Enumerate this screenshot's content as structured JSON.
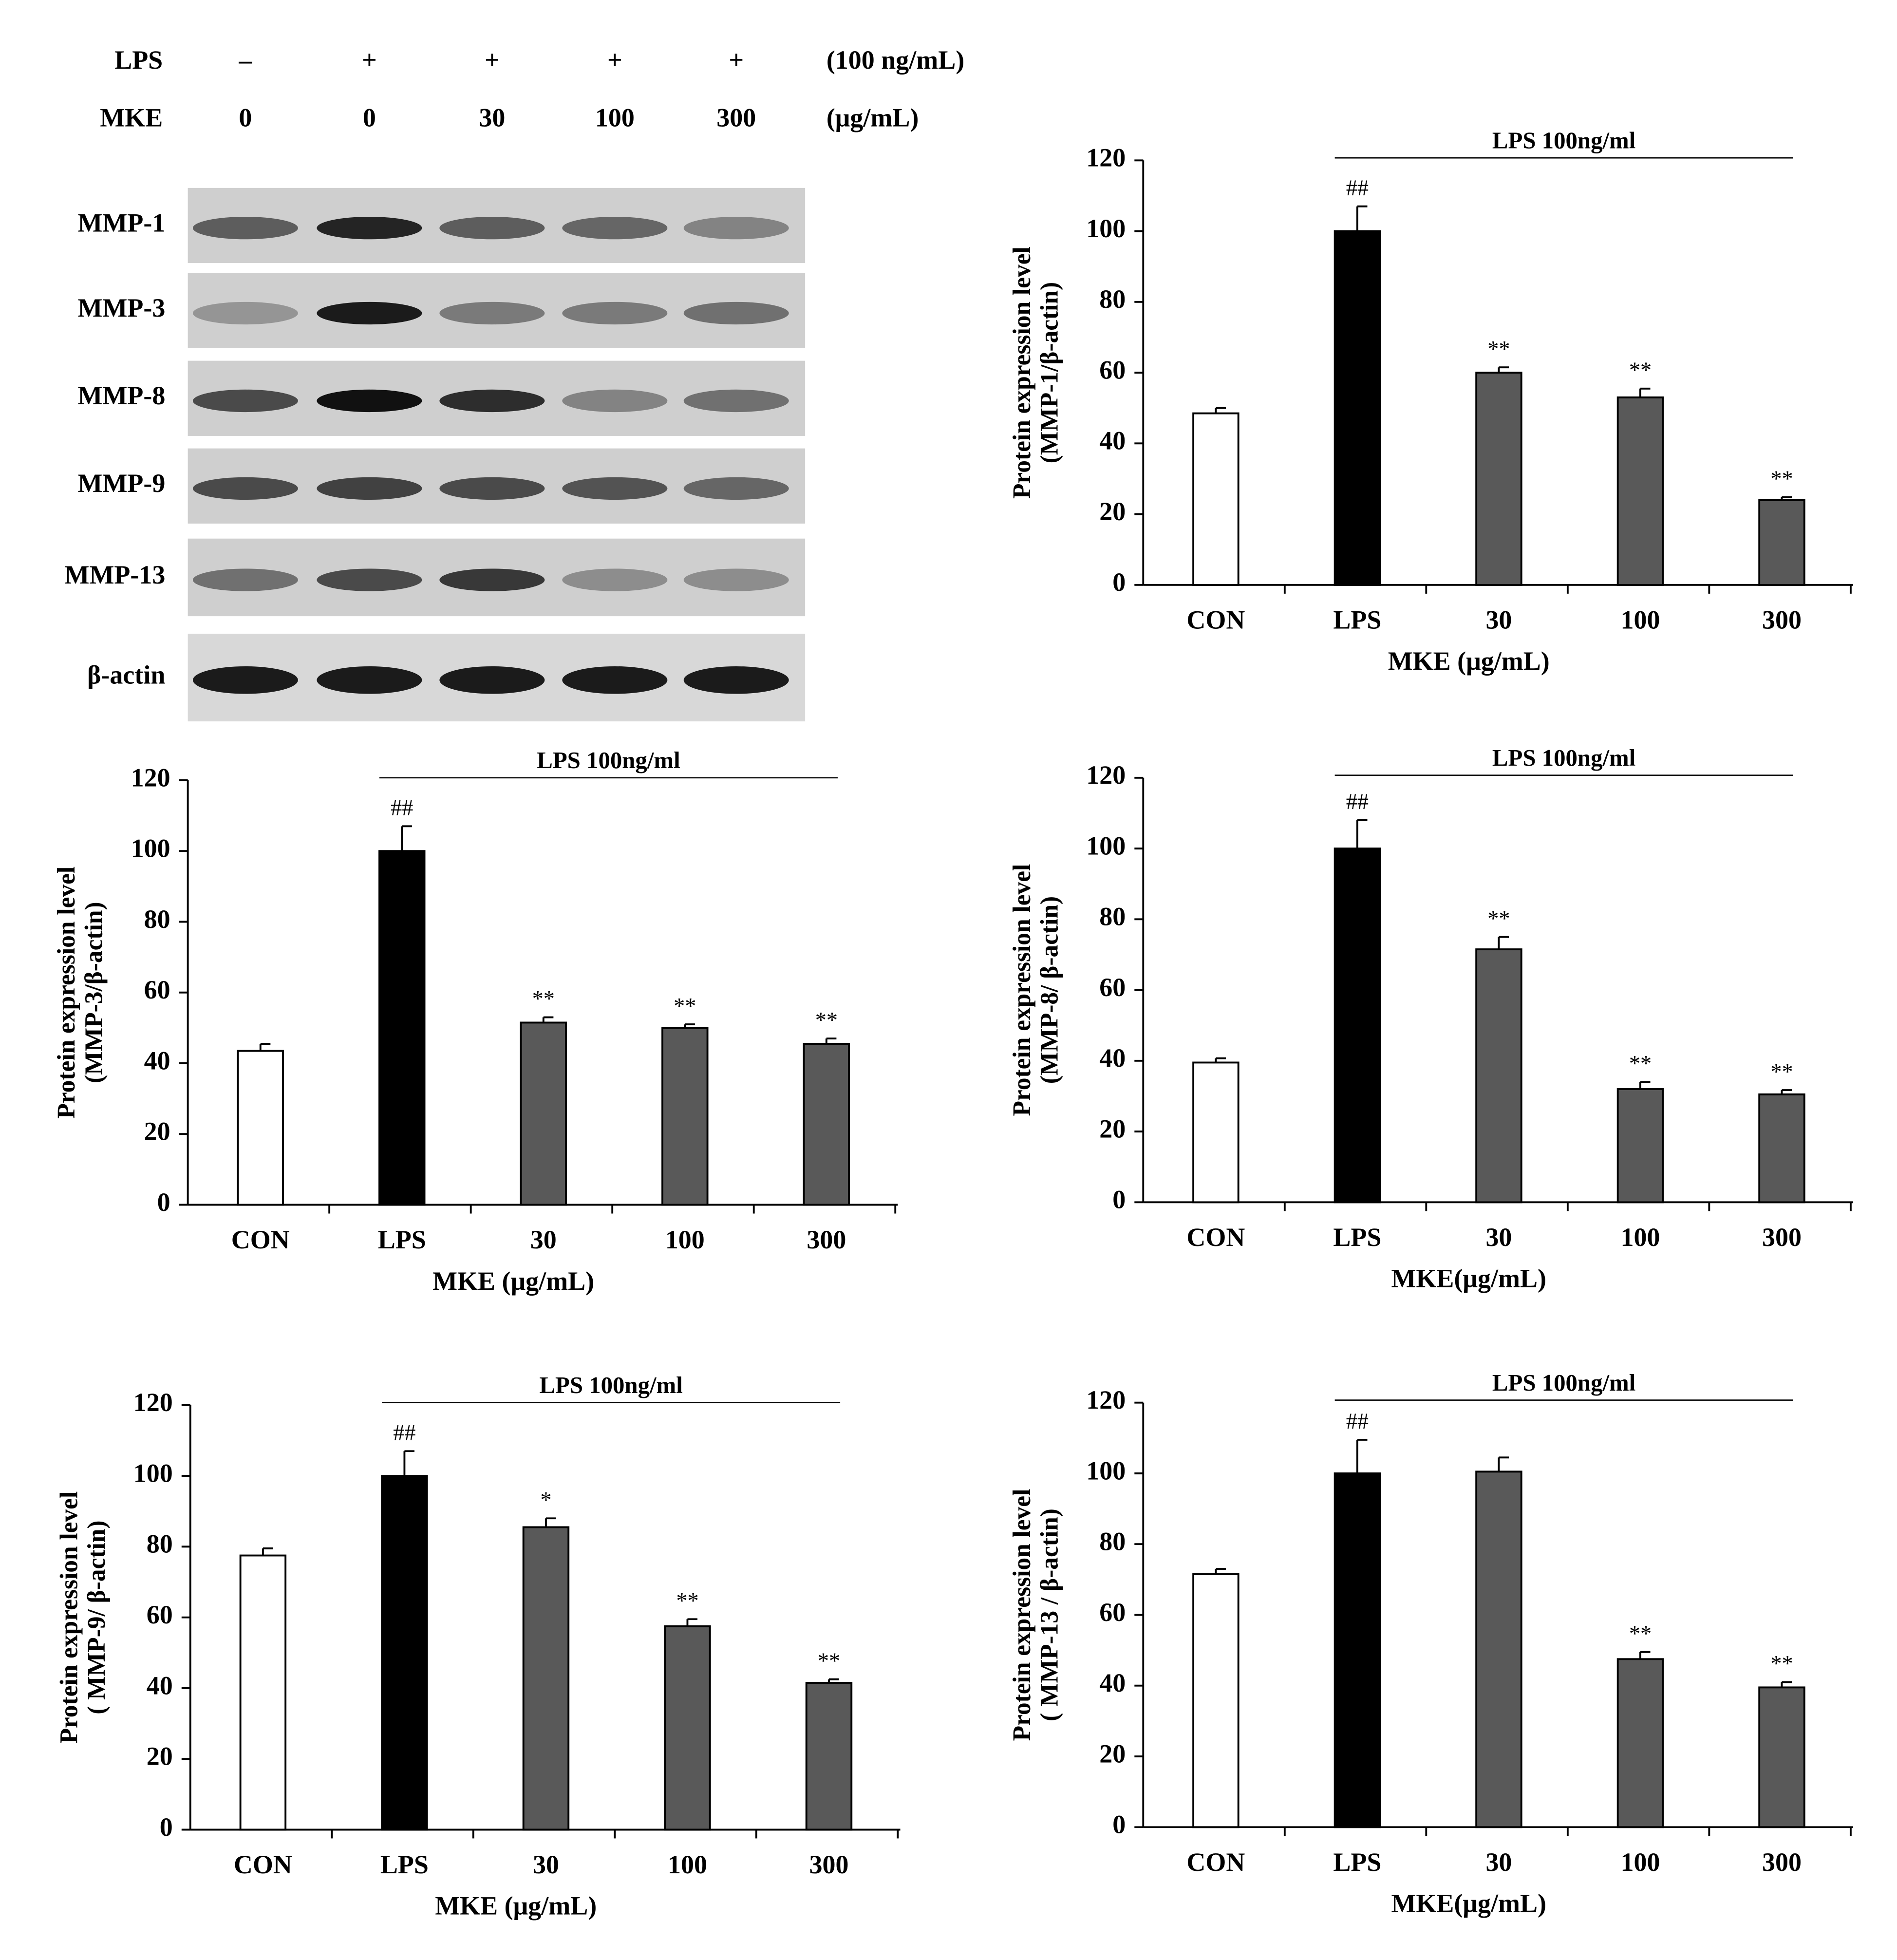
{
  "blot": {
    "treatments": [
      {
        "label": "LPS",
        "lanes": [
          "–",
          "+",
          "+",
          "+",
          "+"
        ],
        "unit": "(100 ng/mL)"
      },
      {
        "label": "MKE",
        "lanes": [
          "0",
          "0",
          "30",
          "100",
          "300"
        ],
        "unit": "(μg/mL)"
      }
    ],
    "rows": [
      "MMP-1",
      "MMP-3",
      "MMP-8",
      "MMP-9",
      "MMP-13",
      "β-actin"
    ]
  },
  "chart_data": [
    {
      "type": "bar",
      "categories": [
        "CON",
        "LPS",
        "30",
        "100",
        "300"
      ],
      "values": [
        48.5,
        100,
        60,
        53,
        24
      ],
      "errors": [
        1.5,
        7,
        1.5,
        2.5,
        0.8
      ],
      "colors": [
        "#ffffff",
        "#000000",
        "#595959",
        "#595959",
        "#595959"
      ],
      "sig_labels": [
        null,
        "##",
        "**",
        "**",
        "**"
      ],
      "annotation": "LPS 100ng/ml",
      "ylabel": [
        "Protein expression level",
        "(MMP-1/β-actin)"
      ],
      "xlabel": "MKE (μg/mL)",
      "ylim": [
        0,
        120
      ],
      "yticks": [
        0,
        20,
        40,
        60,
        80,
        100,
        120
      ]
    },
    {
      "type": "bar",
      "categories": [
        "CON",
        "LPS",
        "30",
        "100",
        "300"
      ],
      "values": [
        43.5,
        100,
        51.5,
        50,
        45.5
      ],
      "errors": [
        2,
        7,
        1.5,
        1,
        1.5
      ],
      "colors": [
        "#ffffff",
        "#000000",
        "#595959",
        "#595959",
        "#595959"
      ],
      "sig_labels": [
        null,
        "##",
        "**",
        "**",
        "**"
      ],
      "annotation": "LPS 100ng/ml",
      "ylabel": [
        "Protein expression level",
        "(MMP-3/β-actin)"
      ],
      "xlabel": "MKE (μg/mL)",
      "ylim": [
        0,
        120
      ],
      "yticks": [
        0,
        20,
        40,
        60,
        80,
        100,
        120
      ]
    },
    {
      "type": "bar",
      "categories": [
        "CON",
        "LPS",
        "30",
        "100",
        "300"
      ],
      "values": [
        39.5,
        100,
        71.5,
        32,
        30.5
      ],
      "errors": [
        1.2,
        8,
        3.5,
        2,
        1.2
      ],
      "colors": [
        "#ffffff",
        "#000000",
        "#595959",
        "#595959",
        "#595959"
      ],
      "sig_labels": [
        null,
        "##",
        "**",
        "**",
        "**"
      ],
      "annotation": "LPS 100ng/ml",
      "ylabel": [
        "Protein expression level",
        "(MMP-8/ β-actin)"
      ],
      "xlabel": "MKE(μg/mL)",
      "ylim": [
        0,
        120
      ],
      "yticks": [
        0,
        20,
        40,
        60,
        80,
        100,
        120
      ]
    },
    {
      "type": "bar",
      "categories": [
        "CON",
        "LPS",
        "30",
        "100",
        "300"
      ],
      "values": [
        77.5,
        100,
        85.5,
        57.5,
        41.5
      ],
      "errors": [
        2,
        7,
        2.5,
        2,
        1
      ],
      "colors": [
        "#ffffff",
        "#000000",
        "#595959",
        "#595959",
        "#595959"
      ],
      "sig_labels": [
        null,
        "##",
        "*",
        "**",
        "**"
      ],
      "annotation": "LPS 100ng/ml",
      "ylabel": [
        "Protein expression level",
        "( MMP-9/ β-actin)"
      ],
      "xlabel": "MKE (μg/mL)",
      "ylim": [
        0,
        120
      ],
      "yticks": [
        0,
        20,
        40,
        60,
        80,
        100,
        120
      ]
    },
    {
      "type": "bar",
      "categories": [
        "CON",
        "LPS",
        "30",
        "100",
        "300"
      ],
      "values": [
        71.5,
        100,
        100.5,
        47.5,
        39.5
      ],
      "errors": [
        1.5,
        9.5,
        4,
        2,
        1.5
      ],
      "colors": [
        "#ffffff",
        "#000000",
        "#595959",
        "#595959",
        "#595959"
      ],
      "sig_labels": [
        null,
        "##",
        null,
        "**",
        "**"
      ],
      "annotation": "LPS 100ng/ml",
      "ylabel": [
        "Protein expression level",
        "( MMP-13 / β-actin)"
      ],
      "xlabel": "MKE(μg/mL)",
      "ylim": [
        0,
        120
      ],
      "yticks": [
        0,
        20,
        40,
        60,
        80,
        100,
        120
      ]
    }
  ]
}
